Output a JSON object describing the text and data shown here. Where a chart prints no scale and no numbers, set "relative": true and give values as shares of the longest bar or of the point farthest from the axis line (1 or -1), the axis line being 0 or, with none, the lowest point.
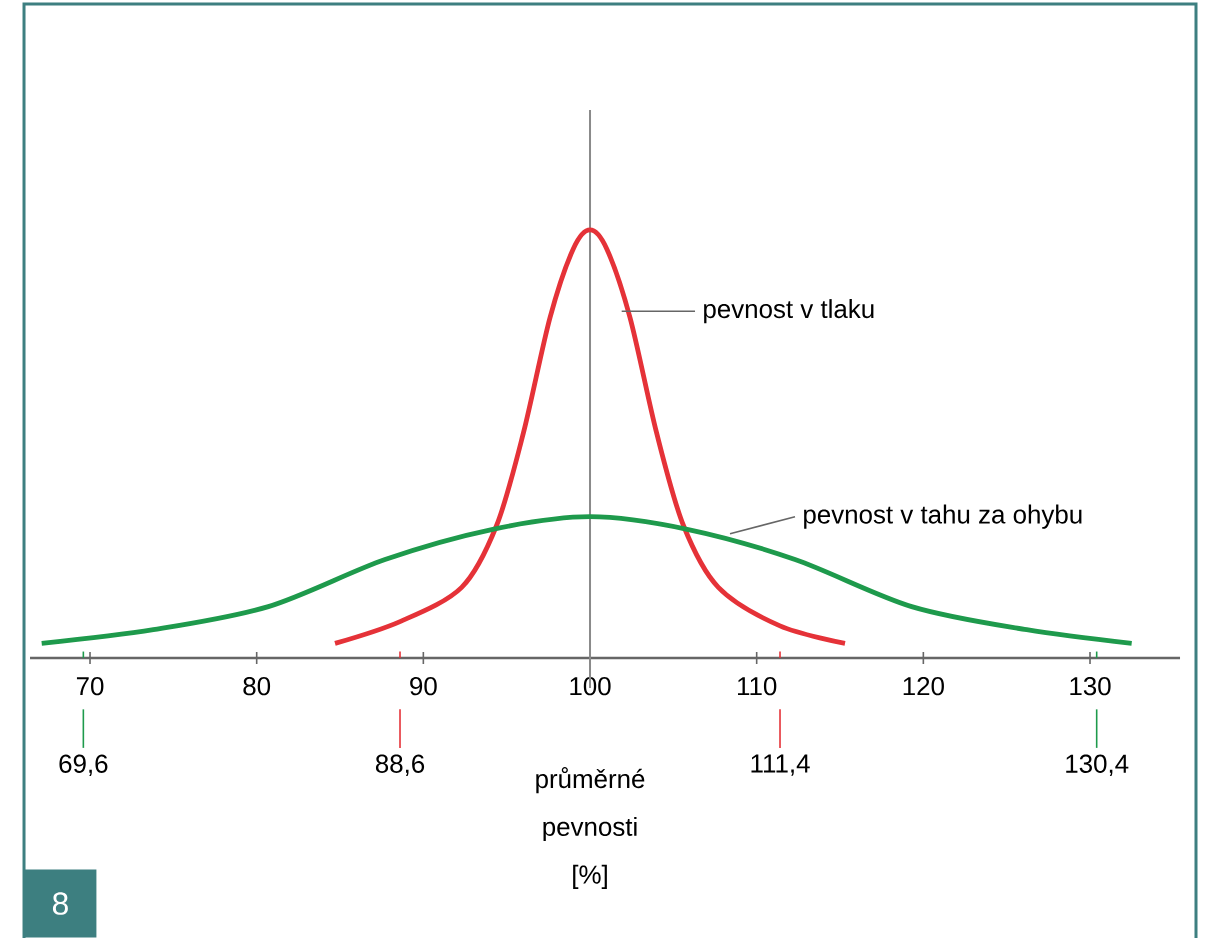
{
  "chart_data": {
    "type": "line",
    "relative": true,
    "xlabel": "průměrné pevnosti [%]",
    "xlim": [
      66.4,
      135.4
    ],
    "xticks": [
      70,
      80,
      90,
      100,
      110,
      120,
      130
    ],
    "series": [
      {
        "name": "pevnost v tlaku",
        "color": "#e53238",
        "x": [
          84.7,
          88.6,
          92.3,
          94.4,
          96.0,
          97.6,
          99.0,
          100,
          101.0,
          102.4,
          104.0,
          105.6,
          107.7,
          111.4,
          115.3
        ],
        "values": [
          0.034,
          0.085,
          0.165,
          0.31,
          0.525,
          0.795,
          0.956,
          1,
          0.956,
          0.795,
          0.525,
          0.31,
          0.165,
          0.075,
          0.034
        ]
      },
      {
        "name": "pevnost v tahu za ohybu",
        "color": "#1e9a4c",
        "x": [
          67.1,
          73.8,
          80.7,
          87.7,
          94.1,
          100,
          105.9,
          112.3,
          119.3,
          126.2,
          132.5
        ],
        "values": [
          0.034,
          0.066,
          0.12,
          0.23,
          0.3,
          0.33,
          0.3,
          0.23,
          0.12,
          0.066,
          0.034
        ]
      }
    ],
    "ref_lines": [
      {
        "axis": "x",
        "value": 100,
        "color": "#8a8a8a"
      },
      {
        "axis": "x",
        "value": 69.6,
        "label": "69,6",
        "color": "#1e9a4c"
      },
      {
        "axis": "x",
        "value": 88.6,
        "label": "88,6",
        "color": "#e53238"
      },
      {
        "axis": "x",
        "value": 111.4,
        "label": "111,4",
        "color": "#e53238"
      },
      {
        "axis": "x",
        "value": 130.4,
        "label": "130,4",
        "color": "#1e9a4c"
      }
    ],
    "annotations": [
      "8"
    ]
  }
}
